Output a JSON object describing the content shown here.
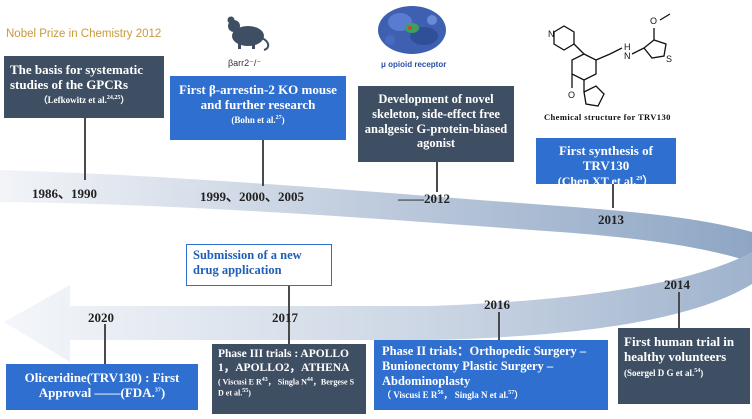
{
  "header": {
    "nobel": "Nobel Prize in Chemistry 2012"
  },
  "images": {
    "barr2_label": "βarr2⁻/⁻",
    "opioid_label": "μ opioid receptor",
    "chem_caption": "Chemical   structure   for   TRV130"
  },
  "years": {
    "y1986": "1986、1990",
    "y1999": "1999、2000、2005",
    "y2012": "——2012",
    "y2013": "2013",
    "y2014": "2014",
    "y2016": "2016",
    "y2017": "2017",
    "y2020": "2020"
  },
  "boxes": {
    "gpcr": {
      "title": "The basis for systematic studies of the GPCRs",
      "cite": "（Lefkowitz et al.",
      "sup": "24,25",
      "cite_end": "）"
    },
    "arrestin": {
      "title": "First β-arrestin-2 KO mouse and further research",
      "cite": "(Bohn et al.",
      "sup": "27",
      "cite_end": ")"
    },
    "agonist": {
      "title": "Development of  novel skeleton, side-effect free analgesic G-protein-biased agonist"
    },
    "synthesis": {
      "title": "First synthesis of TRV130",
      "cite": "(Chen XT et al.",
      "sup": "29",
      "cite_end": "）"
    },
    "submission": {
      "title": "Submission of a new drug application"
    },
    "human": {
      "title": "First human trial in healthy volunteers",
      "cite": "(Soergel D G et al.",
      "sup": "54",
      "cite_end": ")"
    },
    "phase2": {
      "title": "Phase II trials：Orthopedic Surgery –Bunionectomy Plastic Surgery – Abdominoplasty",
      "cite": "（ Viscusi E R",
      "sup1": "56",
      "cite_mid": "，  Singla N et al.",
      "sup2": "57",
      "cite_end": "）"
    },
    "phase3": {
      "title": "Phase III trials : APOLLO 1，APOLLO2，ATHENA",
      "cite": "( Viscusi E R",
      "sup1": "43",
      "cite_mid": "，  Singla N",
      "sup2": "44",
      "cite_mid2": "，Bergese S D et al.",
      "sup3": "55",
      "cite_end": ")"
    },
    "approval": {
      "title": "Oliceridine(TRV130) : First Approval ——(FDA.",
      "sup": "37",
      "cite_end": ")"
    }
  },
  "colors": {
    "dark_box": "#3f4f63",
    "blue_box": "#2f6fcf",
    "nobel_gold": "#c89a3b"
  }
}
